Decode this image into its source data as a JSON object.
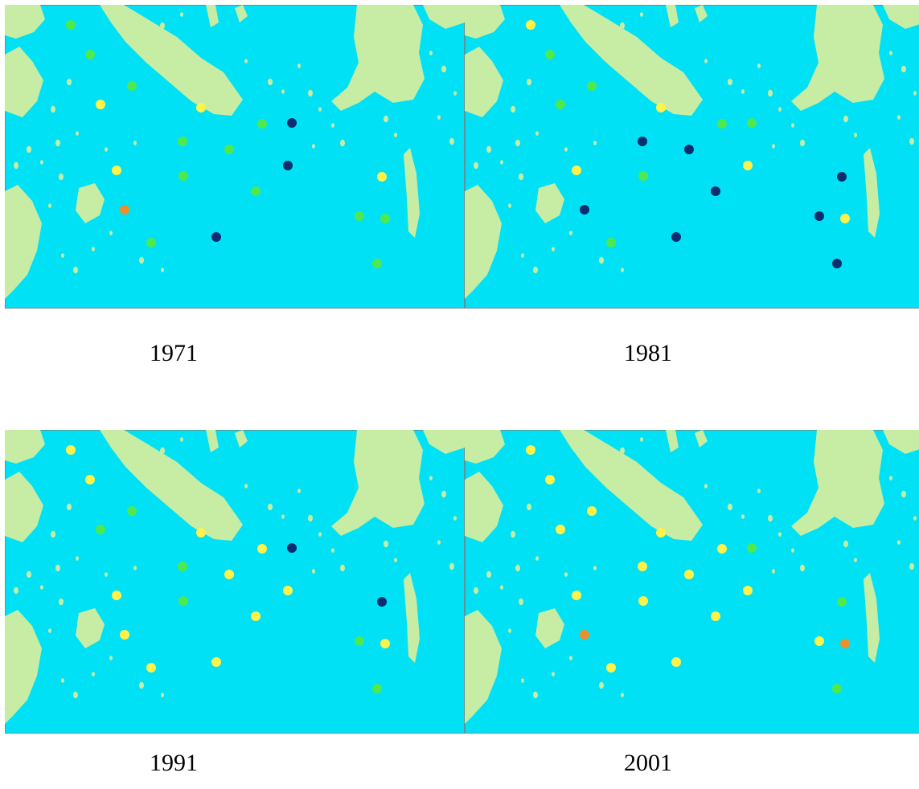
{
  "colors": {
    "sea": "#00E1F5",
    "land": "#C6EDA3",
    "dark_blue": "#0B2E6E",
    "green": "#4EE94E",
    "yellow": "#FFF24A",
    "orange": "#E8902E",
    "frame": "#7a7a7a"
  },
  "maps": [
    {
      "year": "1971",
      "stations": [
        "green",
        "green",
        "green",
        "yellow",
        "yellow",
        "green",
        "green",
        "dark_blue",
        "green",
        "green",
        "dark_blue",
        "yellow",
        "green",
        "orange",
        "green",
        "dark_blue",
        "yellow",
        "green",
        "green",
        "green"
      ]
    },
    {
      "year": "1981",
      "stations": [
        "yellow",
        "green",
        "green",
        "green",
        "yellow",
        "green",
        "dark_blue",
        "green",
        "dark_blue",
        "green",
        "yellow",
        "yellow",
        "dark_blue",
        "dark_blue",
        "green",
        "dark_blue",
        "dark_blue",
        "dark_blue",
        "yellow",
        "dark_blue"
      ]
    },
    {
      "year": "1991",
      "stations": [
        "yellow",
        "yellow",
        "green",
        "green",
        "yellow",
        "yellow",
        "green",
        "dark_blue",
        "yellow",
        "green",
        "yellow",
        "yellow",
        "yellow",
        "yellow",
        "yellow",
        "yellow",
        "dark_blue",
        "green",
        "yellow",
        "green"
      ]
    },
    {
      "year": "2001",
      "stations": [
        "yellow",
        "yellow",
        "yellow",
        "yellow",
        "yellow",
        "yellow",
        "yellow",
        "green",
        "yellow",
        "yellow",
        "yellow",
        "yellow",
        "yellow",
        "orange",
        "yellow",
        "yellow",
        "green",
        "yellow",
        "orange",
        "green"
      ]
    }
  ]
}
